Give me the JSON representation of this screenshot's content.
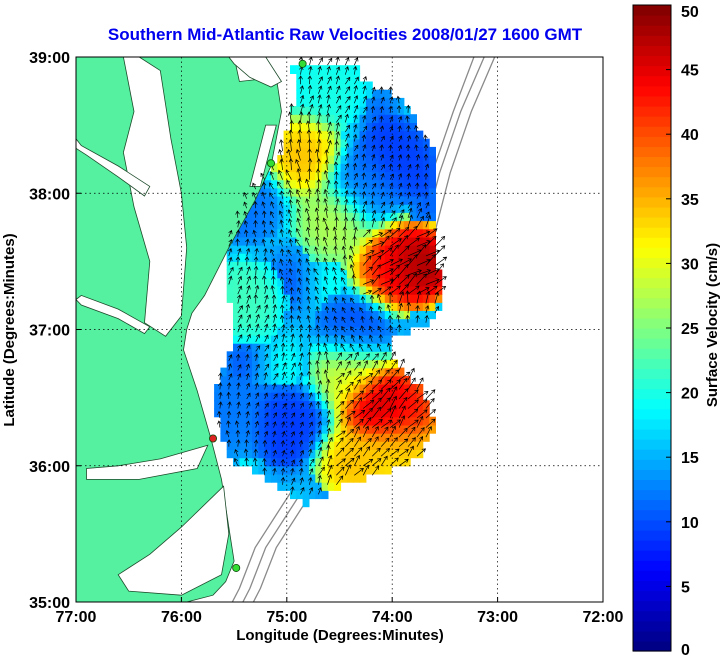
{
  "chart_data": {
    "type": "heatmap",
    "title": "Southern Mid-Atlantic Raw Velocities 2008/01/27 1600 GMT",
    "xlabel": "Longitude (Degrees:Minutes)",
    "ylabel": "Latitude (Degrees:Minutes)",
    "xlim": [
      -77,
      -72
    ],
    "ylim": [
      35,
      39
    ],
    "x_ticks": [
      -77,
      -76,
      -75,
      -74,
      -73,
      -72
    ],
    "x_tick_labels": [
      "77:00",
      "76:00",
      "75:00",
      "74:00",
      "73:00",
      "72:00"
    ],
    "y_ticks": [
      35,
      36,
      37,
      38,
      39
    ],
    "y_tick_labels": [
      "35:00",
      "36:00",
      "37:00",
      "38:00",
      "39:00"
    ],
    "grid": true,
    "colorbar": {
      "label": "Surface Velocity (cm/s)",
      "range": [
        0,
        50
      ],
      "ticks": [
        0,
        5,
        10,
        15,
        20,
        25,
        30,
        35,
        40,
        45,
        50
      ],
      "tick_labels": [
        "0",
        "5",
        "10",
        "15",
        "20",
        "25",
        "30",
        "35",
        "40",
        "45",
        "50"
      ]
    },
    "field_features": [
      {
        "lon": -73.78,
        "lat": 37.48,
        "speed": 50
      },
      {
        "lon": -73.98,
        "lat": 37.45,
        "speed": 44
      },
      {
        "lon": -74.12,
        "lat": 36.45,
        "speed": 48
      },
      {
        "lon": -73.92,
        "lat": 36.4,
        "speed": 44
      },
      {
        "lon": -74.35,
        "lat": 36.02,
        "speed": 35
      },
      {
        "lon": -73.95,
        "lat": 36.12,
        "speed": 34
      },
      {
        "lon": -74.88,
        "lat": 38.28,
        "speed": 35
      },
      {
        "lon": -74.55,
        "lat": 37.8,
        "speed": 28
      },
      {
        "lon": -74.4,
        "lat": 36.7,
        "speed": 30
      },
      {
        "lon": -75.4,
        "lat": 37.2,
        "speed": 22
      },
      {
        "lon": -75.55,
        "lat": 36.35,
        "speed": 12
      },
      {
        "lon": -74.98,
        "lat": 36.3,
        "speed": 9
      },
      {
        "lon": -74.35,
        "lat": 36.98,
        "speed": 10
      },
      {
        "lon": -74.25,
        "lat": 38.05,
        "speed": 12
      },
      {
        "lon": -73.95,
        "lat": 38.25,
        "speed": 9
      },
      {
        "lon": -75.35,
        "lat": 37.95,
        "speed": 12
      },
      {
        "lon": -74.6,
        "lat": 38.8,
        "speed": 20
      }
    ],
    "sites": [
      {
        "lon": -74.85,
        "lat": 38.95,
        "color": "#33dd33"
      },
      {
        "lon": -75.15,
        "lat": 38.22,
        "color": "#33dd33"
      },
      {
        "lon": -75.7,
        "lat": 36.2,
        "color": "#dd2222"
      },
      {
        "lon": -75.48,
        "lat": 35.25,
        "color": "#33dd33"
      }
    ]
  },
  "colors": {
    "land": "#55f0a0",
    "land_edge": "#1c4b2a",
    "ocean": "#ffffff",
    "bathymetry": "#8a8a8a",
    "title": "#0000ee",
    "arrow": "#000000"
  }
}
